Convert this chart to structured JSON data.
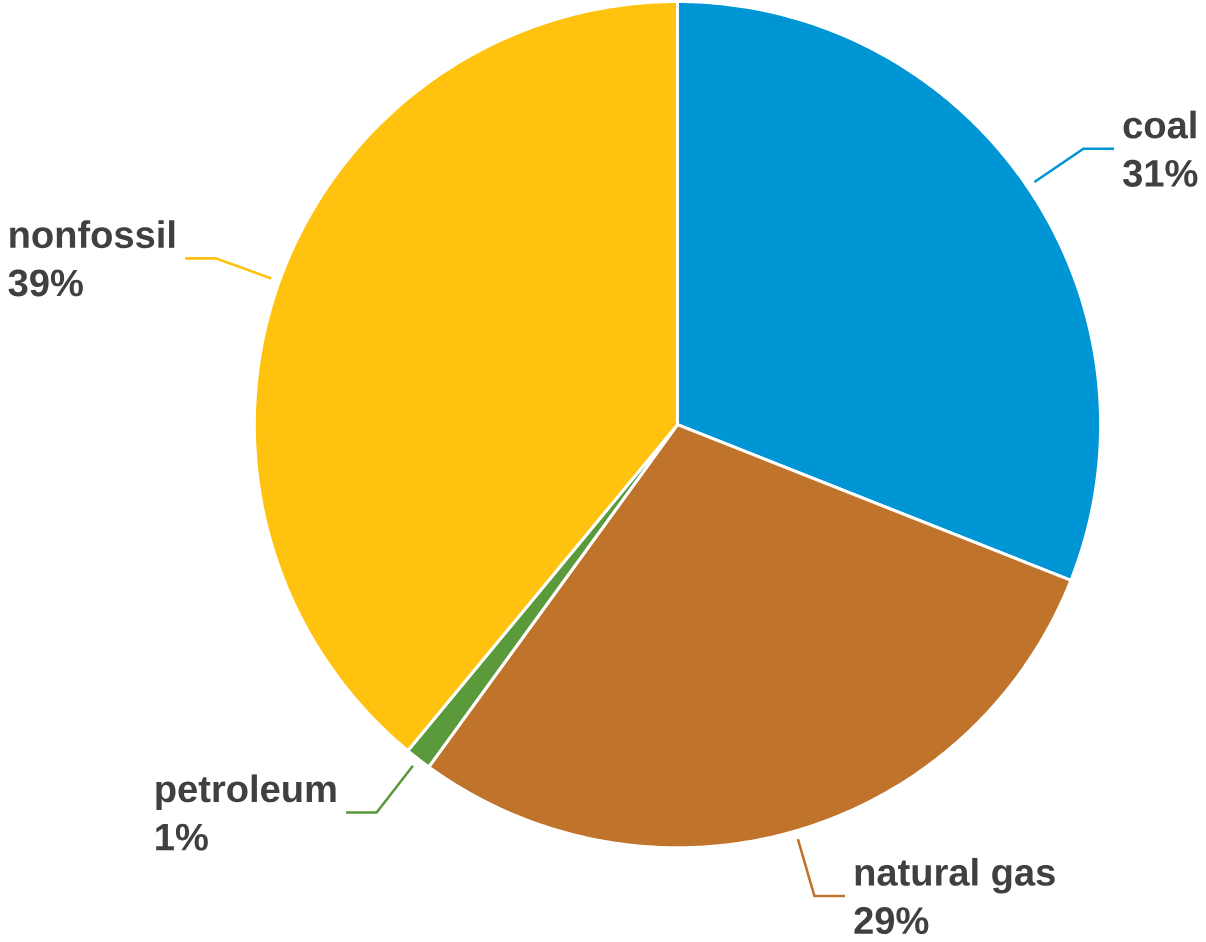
{
  "chart_data": {
    "type": "pie",
    "categories": [
      "coal",
      "natural gas",
      "petroleum",
      "nonfossil"
    ],
    "values": [
      31,
      29,
      1,
      39
    ],
    "colors": [
      "#0096d6",
      "#c0732a",
      "#5a9a3a",
      "#ffc20e"
    ],
    "value_labels": [
      "31%",
      "29%",
      "1%",
      "39%"
    ]
  }
}
